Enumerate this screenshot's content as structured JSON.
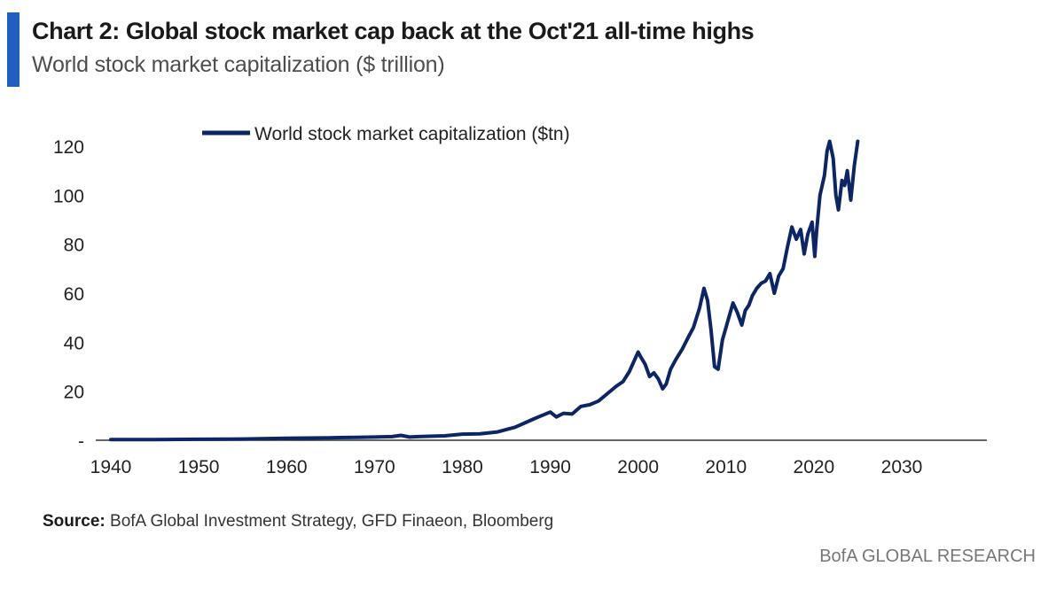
{
  "header": {
    "title": "Chart 2: Global stock market cap back at the Oct'21 all-time highs",
    "subtitle": "World stock market capitalization ($ trillion)"
  },
  "footer": {
    "source_label": "Source:",
    "source_text": " BofA Global Investment Strategy, GFD Finaeon, Bloomberg",
    "brand": "BofA GLOBAL RESEARCH"
  },
  "colors": {
    "accent": "#1f5fbf",
    "series": "#0b2566",
    "axis": "#333333"
  },
  "chart_data": {
    "type": "line",
    "title": "",
    "xlabel": "",
    "ylabel": "",
    "xlim": [
      1940,
      2033
    ],
    "ylim": [
      0,
      125
    ],
    "x_ticks": [
      1940,
      1950,
      1960,
      1970,
      1980,
      1990,
      2000,
      2010,
      2020,
      2030
    ],
    "y_ticks": [
      0,
      20,
      40,
      60,
      80,
      100,
      120
    ],
    "y_tick_labels": [
      "-",
      "20",
      "40",
      "60",
      "80",
      "100",
      "120"
    ],
    "grid": false,
    "legend": "top-center",
    "series": [
      {
        "name": "World stock market capitalization ($tn)",
        "x": [
          1940,
          1945,
          1950,
          1955,
          1960,
          1965,
          1968,
          1970,
          1972,
          1973,
          1974,
          1975,
          1978,
          1980,
          1982,
          1984,
          1986,
          1988,
          1989,
          1990,
          1990.7,
          1991.5,
          1992.5,
          1993.5,
          1994.5,
          1995.5,
          1996.5,
          1997.5,
          1998.3,
          1999,
          1999.5,
          2000,
          2000.3,
          2000.8,
          2001.3,
          2001.8,
          2002.3,
          2002.8,
          2003.2,
          2003.7,
          2004.3,
          2005,
          2005.7,
          2006.3,
          2007,
          2007.5,
          2007.9,
          2008.3,
          2008.7,
          2009.1,
          2009.6,
          2010,
          2010.4,
          2010.8,
          2011.3,
          2011.8,
          2012.2,
          2012.6,
          2013,
          2013.5,
          2014,
          2014.5,
          2015,
          2015.5,
          2016,
          2016.5,
          2017,
          2017.5,
          2018,
          2018.5,
          2018.9,
          2019.3,
          2019.8,
          2020.1,
          2020.3,
          2020.7,
          2021.2,
          2021.5,
          2021.8,
          2022.2,
          2022.5,
          2022.8,
          2023.2,
          2023.5,
          2023.8,
          2024.2,
          2024.6,
          2025
        ],
        "values": [
          0.3,
          0.3,
          0.4,
          0.5,
          0.8,
          1.0,
          1.2,
          1.3,
          1.5,
          2.0,
          1.3,
          1.5,
          1.8,
          2.5,
          2.6,
          3.4,
          5.3,
          8.5,
          10.0,
          11.5,
          9.5,
          11.0,
          10.7,
          13.8,
          14.5,
          16.0,
          19.0,
          22.0,
          24.0,
          28.0,
          32.0,
          36.0,
          34.0,
          31.0,
          26.0,
          27.5,
          25.0,
          21.0,
          23.0,
          29.0,
          33.0,
          37.0,
          42.0,
          46.0,
          54.0,
          62.0,
          57.0,
          45.0,
          30.0,
          29.0,
          41.0,
          46.0,
          51.0,
          56.0,
          52.0,
          47.0,
          53.0,
          55.0,
          59.0,
          62.0,
          64.0,
          65.0,
          68.0,
          60.0,
          67.0,
          70.0,
          79.0,
          87.0,
          82.0,
          86.0,
          76.0,
          84.0,
          89.0,
          75.0,
          85.0,
          100.0,
          108.0,
          118.0,
          122.0,
          115.0,
          100.0,
          94.0,
          106.0,
          104.0,
          110.0,
          98.0,
          112.0,
          122.0
        ]
      }
    ]
  }
}
